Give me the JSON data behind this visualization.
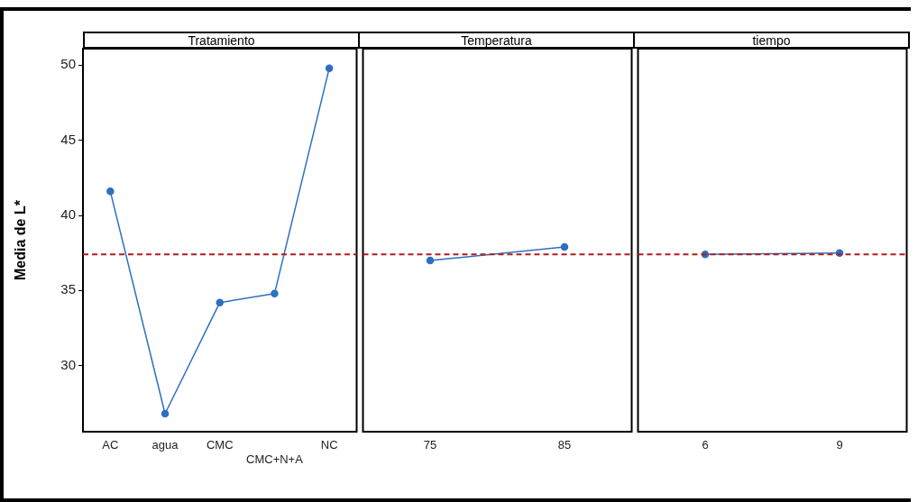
{
  "chart_data": [
    {
      "type": "line",
      "title": "Tratamiento",
      "ylabel": "Media de L*",
      "categories": [
        "AC",
        "agua",
        "CMC",
        "CMC+N+A",
        "NC"
      ],
      "series": [
        {
          "color": "#2f6fc0",
          "values": [
            41.6,
            26.8,
            34.2,
            34.8,
            49.8
          ]
        }
      ],
      "ylim": [
        25.6,
        51.1
      ],
      "yticks": [
        30,
        35,
        40,
        45,
        50
      ],
      "grid": false,
      "legend": false,
      "marker": "circle",
      "line_style": "solid",
      "ref_lines": [
        {
          "axis": "y",
          "value": 37.4,
          "color": "#b01c1c",
          "line_style": "dashed"
        }
      ]
    },
    {
      "type": "line",
      "title": "Temperatura",
      "categories": [
        "75",
        "85"
      ],
      "series": [
        {
          "color": "#2f6fc0",
          "values": [
            37.0,
            37.9
          ]
        }
      ],
      "ylim": [
        25.6,
        51.1
      ],
      "yticks": [
        30,
        35,
        40,
        45,
        50
      ],
      "tick_labels": "x",
      "grid": false,
      "legend": false,
      "marker": "circle",
      "line_style": "solid",
      "ref_lines": [
        {
          "axis": "y",
          "value": 37.4,
          "color": "#b01c1c",
          "line_style": "dashed"
        }
      ]
    },
    {
      "type": "line",
      "title": "tiempo",
      "categories": [
        "6",
        "9"
      ],
      "series": [
        {
          "color": "#2f6fc0",
          "values": [
            37.4,
            37.5
          ]
        }
      ],
      "ylim": [
        25.6,
        51.1
      ],
      "yticks": [
        30,
        35,
        40,
        45,
        50
      ],
      "tick_labels": "x",
      "grid": false,
      "legend": false,
      "marker": "circle",
      "line_style": "solid",
      "ref_lines": [
        {
          "axis": "y",
          "value": 37.4,
          "color": "#b01c1c",
          "line_style": "dashed"
        }
      ]
    }
  ]
}
